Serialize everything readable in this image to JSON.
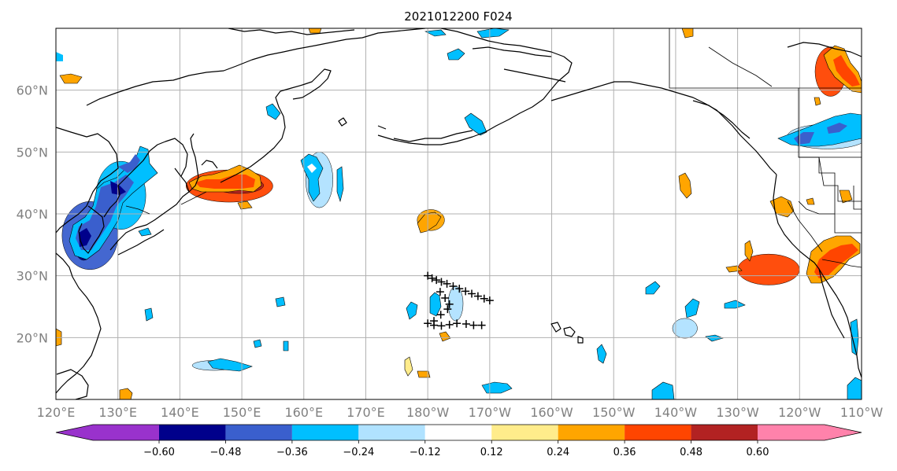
{
  "title": "2021012200 F024",
  "chart_data": {
    "type": "map",
    "title": "2021012200 F024",
    "lon_range": [
      120,
      250
    ],
    "lat_range": [
      10,
      70
    ],
    "lon_ticks": [
      {
        "value": 120,
        "label": "120°E"
      },
      {
        "value": 130,
        "label": "130°E"
      },
      {
        "value": 140,
        "label": "140°E"
      },
      {
        "value": 150,
        "label": "150°E"
      },
      {
        "value": 160,
        "label": "160°E"
      },
      {
        "value": 170,
        "label": "170°E"
      },
      {
        "value": 180,
        "label": "180°W"
      },
      {
        "value": 190,
        "label": "170°W"
      },
      {
        "value": 200,
        "label": "160°W"
      },
      {
        "value": 210,
        "label": "150°W"
      },
      {
        "value": 220,
        "label": "140°W"
      },
      {
        "value": 230,
        "label": "130°W"
      },
      {
        "value": 240,
        "label": "120°W"
      },
      {
        "value": 250,
        "label": "110°W"
      }
    ],
    "lat_ticks": [
      {
        "value": 20,
        "label": "20°N"
      },
      {
        "value": 30,
        "label": "30°N"
      },
      {
        "value": 40,
        "label": "40°N"
      },
      {
        "value": 50,
        "label": "50°N"
      },
      {
        "value": 60,
        "label": "60°N"
      }
    ],
    "grid": true,
    "colorbar": {
      "levels": [
        -0.6,
        -0.48,
        -0.36,
        -0.24,
        -0.12,
        0.12,
        0.24,
        0.36,
        0.48,
        0.6
      ],
      "labels": [
        "−0.60",
        "−0.48",
        "−0.36",
        "−0.24",
        "−0.12",
        "0.12",
        "0.24",
        "0.36",
        "0.48",
        "0.60"
      ],
      "colors": [
        "#9932cc",
        "#00008b",
        "#3a5fcd",
        "#00bfff",
        "#b0e2ff",
        "#ffffff",
        "#ffec8b",
        "#ffa500",
        "#ff4500",
        "#b22222",
        "#ff82ab"
      ],
      "extend": "both"
    },
    "track_markers": [
      [
        -180.0,
        30.0
      ],
      [
        -179.3,
        29.6
      ],
      [
        -178.6,
        29.3
      ],
      [
        -177.8,
        29.0
      ],
      [
        -176.9,
        28.7
      ],
      [
        -175.9,
        28.3
      ],
      [
        -174.9,
        27.9
      ],
      [
        -173.9,
        27.5
      ],
      [
        -172.9,
        27.1
      ],
      [
        -171.9,
        26.7
      ],
      [
        -170.9,
        26.3
      ],
      [
        -170.0,
        26.0
      ],
      [
        -178.0,
        27.4
      ],
      [
        -177.2,
        26.4
      ],
      [
        -176.5,
        25.4
      ],
      [
        -176.8,
        24.6
      ],
      [
        -177.9,
        23.7
      ],
      [
        -179.0,
        22.7
      ],
      [
        -180.0,
        22.3
      ],
      [
        -179.0,
        22.0
      ],
      [
        -177.8,
        21.9
      ],
      [
        -176.5,
        22.1
      ],
      [
        -175.3,
        22.3
      ],
      [
        -173.8,
        22.2
      ],
      [
        -172.6,
        22.0
      ],
      [
        -171.3,
        22.0
      ]
    ],
    "anomaly_regions": [
      {
        "value": -0.48,
        "lon": 125.5,
        "lat": 36.5,
        "rlon": 4.5,
        "rlat": 5.5
      },
      {
        "value": -0.6,
        "lon": 124.5,
        "lat": 35.0,
        "rlon": 1.5,
        "rlat": 2.5
      },
      {
        "value": -0.36,
        "lon": 130.5,
        "lat": 43.0,
        "rlon": 4.0,
        "rlat": 5.5
      },
      {
        "value": 0.36,
        "lon": 148.0,
        "lat": 44.5,
        "rlon": 7.0,
        "rlat": 2.6
      },
      {
        "value": 0.48,
        "lon": 149.5,
        "lat": 44.6,
        "rlon": 4.0,
        "rlat": 1.3
      },
      {
        "value": -0.24,
        "lon": 162.5,
        "lat": 45.5,
        "rlon": 2.2,
        "rlat": 4.5
      },
      {
        "value": -0.24,
        "lon": 184.5,
        "lat": 25.5,
        "rlon": 1.2,
        "rlat": 2.8
      },
      {
        "value": 0.24,
        "lon": 180.5,
        "lat": 39.0,
        "rlon": 2.2,
        "rlat": 1.7
      },
      {
        "value": 0.36,
        "lon": 235.0,
        "lat": 31.0,
        "rlon": 5.0,
        "rlat": 2.5
      },
      {
        "value": -0.24,
        "lon": 244.5,
        "lat": 52.5,
        "rlon": 6.5,
        "rlat": 2.0
      },
      {
        "value": 0.36,
        "lon": 245.0,
        "lat": 63.0,
        "rlon": 2.5,
        "rlat": 4.0
      },
      {
        "value": -0.24,
        "lon": 221.5,
        "lat": 21.5,
        "rlon": 2.0,
        "rlat": 1.6
      },
      {
        "value": -0.24,
        "lon": 145.5,
        "lat": 15.5,
        "rlon": 3.5,
        "rlat": 0.8
      }
    ]
  }
}
